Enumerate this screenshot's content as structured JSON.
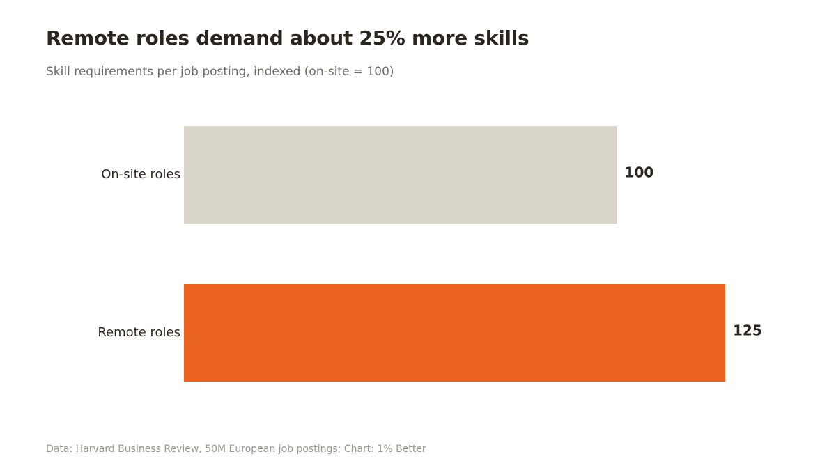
{
  "header": {
    "title": "Remote roles demand about 25% more skills",
    "subtitle": "Skill requirements per job posting, indexed (on-site = 100)"
  },
  "footer": {
    "source": "Data: Harvard Business Review, 50M European job postings; Chart: 1% Better"
  },
  "chart_data": {
    "type": "bar",
    "orientation": "horizontal",
    "title": "Remote roles demand about 25% more skills",
    "subtitle": "Skill requirements per job posting, indexed (on-site = 100)",
    "categories": [
      "On-site roles",
      "Remote roles"
    ],
    "values": [
      100,
      125
    ],
    "value_labels": [
      "100",
      "125"
    ],
    "colors": [
      "#d9d4ca",
      "#ec6520"
    ],
    "xlim": [
      0,
      125
    ],
    "grid": false,
    "legend": "none"
  }
}
